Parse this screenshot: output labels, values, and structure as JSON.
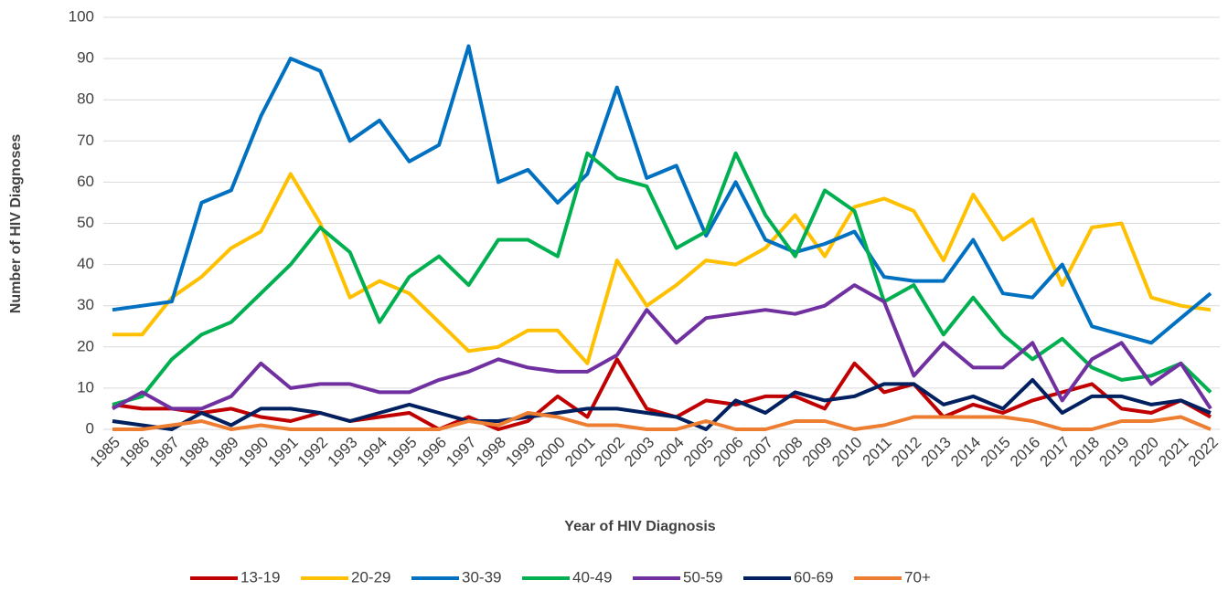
{
  "chart_data": {
    "type": "line",
    "x_label": "Year of HIV Diagnosis",
    "y_label": "Number of HIV Diagnoses",
    "categories": [
      "1985",
      "1986",
      "1987",
      "1988",
      "1989",
      "1990",
      "1991",
      "1992",
      "1993",
      "1994",
      "1995",
      "1996",
      "1997",
      "1998",
      "1999",
      "2000",
      "2001",
      "2002",
      "2003",
      "2004",
      "2005",
      "2006",
      "2007",
      "2008",
      "2009",
      "2010",
      "2011",
      "2012",
      "2013",
      "2014",
      "2015",
      "2016",
      "2017",
      "2018",
      "2019",
      "2020",
      "2021",
      "2022"
    ],
    "ylim": [
      0,
      100
    ],
    "yticks": [
      0,
      10,
      20,
      30,
      40,
      50,
      60,
      70,
      80,
      90,
      100
    ],
    "grid": true,
    "legend": "bottom",
    "series": [
      {
        "name": "13-19",
        "color": "#c00000",
        "values": [
          6,
          5,
          5,
          4,
          5,
          3,
          2,
          4,
          2,
          3,
          4,
          0,
          3,
          0,
          2,
          8,
          3,
          17,
          5,
          3,
          7,
          6,
          8,
          8,
          5,
          16,
          9,
          11,
          3,
          6,
          4,
          7,
          9,
          11,
          5,
          4,
          7,
          3
        ]
      },
      {
        "name": "20-29",
        "color": "#ffc000",
        "values": [
          23,
          23,
          32,
          37,
          44,
          48,
          62,
          50,
          32,
          36,
          33,
          26,
          19,
          20,
          24,
          24,
          16,
          41,
          30,
          35,
          41,
          40,
          44,
          52,
          42,
          54,
          56,
          53,
          41,
          57,
          46,
          51,
          35,
          49,
          50,
          32,
          30,
          29
        ]
      },
      {
        "name": "30-39",
        "color": "#0070c0",
        "values": [
          29,
          30,
          31,
          55,
          58,
          76,
          90,
          87,
          70,
          75,
          65,
          69,
          93,
          60,
          63,
          55,
          62,
          83,
          61,
          64,
          47,
          60,
          46,
          43,
          45,
          48,
          37,
          36,
          36,
          46,
          33,
          32,
          40,
          25,
          23,
          21,
          27,
          33
        ]
      },
      {
        "name": "40-49",
        "color": "#00b050",
        "values": [
          6,
          8,
          17,
          23,
          26,
          33,
          40,
          49,
          43,
          26,
          37,
          42,
          35,
          46,
          46,
          42,
          67,
          61,
          59,
          44,
          48,
          67,
          52,
          42,
          58,
          53,
          31,
          35,
          23,
          32,
          23,
          17,
          22,
          15,
          12,
          13,
          16,
          9
        ]
      },
      {
        "name": "50-59",
        "color": "#7030a0",
        "values": [
          5,
          9,
          5,
          5,
          8,
          16,
          10,
          11,
          11,
          9,
          9,
          12,
          14,
          17,
          15,
          14,
          14,
          18,
          29,
          21,
          27,
          28,
          29,
          28,
          30,
          35,
          31,
          13,
          21,
          15,
          15,
          21,
          7,
          17,
          21,
          11,
          16,
          5
        ]
      },
      {
        "name": "60-69",
        "color": "#002060",
        "values": [
          2,
          1,
          0,
          4,
          1,
          5,
          5,
          4,
          2,
          4,
          6,
          4,
          2,
          2,
          3,
          4,
          5,
          5,
          4,
          3,
          0,
          7,
          4,
          9,
          7,
          8,
          11,
          11,
          6,
          8,
          5,
          12,
          4,
          8,
          8,
          6,
          7,
          4
        ]
      },
      {
        "name": "70+",
        "color": "#ed7d31",
        "values": [
          0,
          0,
          1,
          2,
          0,
          1,
          0,
          0,
          0,
          0,
          0,
          0,
          2,
          1,
          4,
          3,
          1,
          1,
          0,
          0,
          2,
          0,
          0,
          2,
          2,
          0,
          1,
          3,
          3,
          3,
          3,
          2,
          0,
          0,
          2,
          2,
          3,
          0
        ]
      }
    ]
  }
}
